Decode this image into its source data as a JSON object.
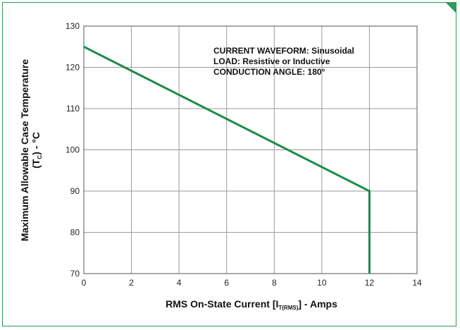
{
  "chart_data": {
    "type": "line",
    "xlabel": {
      "main": "RMS On-State Current [I",
      "sub": "T(RMS)",
      "tail": "] - Amps"
    },
    "ylabel": {
      "line1": "Maximum Allowable Case Temperature",
      "line2_main": "(T",
      "line2_sub": "C",
      "line2_tail": ") - °C"
    },
    "xlim": [
      0,
      14
    ],
    "ylim": [
      70,
      130
    ],
    "xticks": [
      0,
      2,
      4,
      6,
      8,
      10,
      12,
      14
    ],
    "yticks": [
      70,
      80,
      90,
      100,
      110,
      120,
      130
    ],
    "grid": true,
    "series": [
      {
        "x": [
          0,
          12,
          12
        ],
        "y": [
          125,
          90,
          70
        ],
        "color": "#1e8a4c"
      }
    ],
    "annotations": [
      "CURRENT WAVEFORM: Sinusoidal",
      "LOAD: Resistive or Inductive",
      "CONDUCTION ANGLE: 180°"
    ]
  }
}
